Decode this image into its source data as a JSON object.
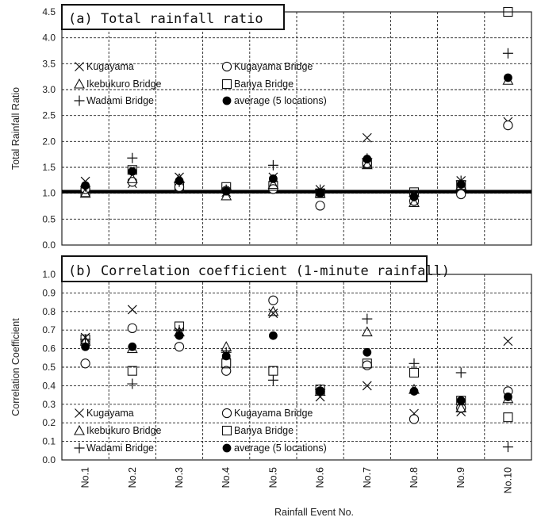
{
  "chart_data": [
    {
      "type": "scatter",
      "title": "(a) Total rainfall ratio",
      "ylabel": "Total Rainfall Ratio",
      "xlabel": "Rainfall Event No.",
      "categories": [
        "No.1",
        "No.2",
        "No.3",
        "No.4",
        "No.5",
        "No.6",
        "No.7",
        "No.8",
        "No.9",
        "No.10"
      ],
      "ylim": [
        0,
        4.5
      ],
      "yticks": [
        "0.0",
        "0.5",
        "1.0",
        "1.5",
        "2.0",
        "2.5",
        "3.0",
        "3.5",
        "4.0",
        "4.5"
      ],
      "grid": true,
      "legend_position": "top-left",
      "reference_line": 1.03,
      "series": [
        {
          "name": "Kugayama",
          "marker": "x",
          "values": [
            1.23,
            1.19,
            1.31,
            1.02,
            1.31,
            1.07,
            2.07,
            0.88,
            1.24,
            2.38
          ]
        },
        {
          "name": "Kugayama Bridge",
          "marker": "circle-open",
          "values": [
            1.08,
            1.22,
            1.12,
            1.05,
            1.08,
            0.76,
            1.58,
            0.85,
            0.98,
            2.31
          ]
        },
        {
          "name": "Ikebukuro Bridge",
          "marker": "triangle-open",
          "values": [
            1.0,
            1.28,
            1.28,
            0.95,
            1.17,
            1.0,
            1.55,
            0.82,
            1.15,
            3.18
          ]
        },
        {
          "name": "Banya Bridge",
          "marker": "square-open",
          "values": [
            1.02,
            1.45,
            1.12,
            1.12,
            1.14,
            1.0,
            1.57,
            1.02,
            1.16,
            4.5
          ]
        },
        {
          "name": "Wadami Bridge",
          "marker": "plus",
          "values": [
            1.13,
            1.68,
            1.22,
            1.07,
            1.54,
            1.07,
            1.67,
            0.94,
            1.24,
            3.7
          ]
        },
        {
          "name": "average (5 locations)",
          "marker": "circle-filled",
          "values": [
            1.15,
            1.42,
            1.24,
            1.04,
            1.28,
            1.0,
            1.66,
            0.93,
            1.17,
            3.23
          ]
        }
      ]
    },
    {
      "type": "scatter",
      "title": "(b) Correlation coefficient (1-minute rainfall)",
      "ylabel": "Correlation Coefficient",
      "xlabel": "Rainfall Event No.",
      "categories": [
        "No.1",
        "No.2",
        "No.3",
        "No.4",
        "No.5",
        "No.6",
        "No.7",
        "No.8",
        "No.9",
        "No.10"
      ],
      "ylim": [
        0,
        1.0
      ],
      "yticks": [
        "0.0",
        "0.1",
        "0.2",
        "0.3",
        "0.4",
        "0.5",
        "0.6",
        "0.7",
        "0.8",
        "0.9",
        "1.0"
      ],
      "grid": true,
      "legend_position": "bottom-left",
      "series": [
        {
          "name": "Kugayama",
          "marker": "x",
          "values": [
            0.66,
            0.81,
            0.69,
            0.57,
            0.79,
            0.34,
            0.4,
            0.25,
            0.26,
            0.64
          ]
        },
        {
          "name": "Kugayama Bridge",
          "marker": "circle-open",
          "values": [
            0.52,
            0.71,
            0.61,
            0.48,
            0.86,
            0.37,
            0.51,
            0.22,
            0.28,
            0.37
          ]
        },
        {
          "name": "Ikebukuro Bridge",
          "marker": "triangle-open",
          "values": [
            0.64,
            0.6,
            0.69,
            0.61,
            0.8,
            0.37,
            0.69,
            0.38,
            0.28,
            0.33
          ]
        },
        {
          "name": "Banya Bridge",
          "marker": "square-open",
          "values": [
            0.65,
            0.48,
            0.72,
            0.52,
            0.48,
            0.38,
            0.52,
            0.47,
            0.32,
            0.23
          ]
        },
        {
          "name": "Wadami Bridge",
          "marker": "plus",
          "values": [
            0.65,
            0.41,
            0.7,
            0.58,
            0.43,
            0.38,
            0.76,
            0.52,
            0.47,
            0.07
          ]
        },
        {
          "name": "average (5 locations)",
          "marker": "circle-filled",
          "values": [
            0.61,
            0.61,
            0.67,
            0.56,
            0.67,
            0.37,
            0.58,
            0.37,
            0.32,
            0.34
          ]
        }
      ]
    }
  ]
}
